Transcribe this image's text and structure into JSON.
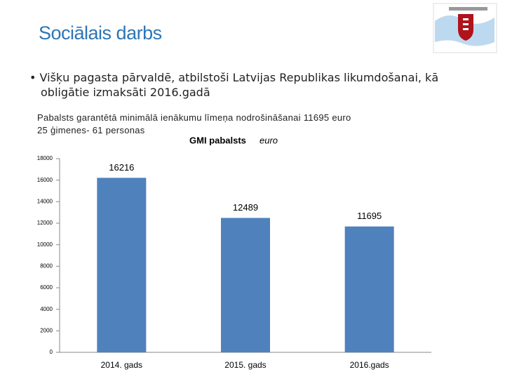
{
  "title": "Sociālais darbs",
  "bullet": "Višķu pagasta pārvaldē, atbilstoši Latvijas Republikas likumdošanai, kā obligātie izmaksāti 2016.gadā",
  "notes": [
    "Pabalsts garantētā minimālā ienākumu līmeņa nodrošināšanai 11695 euro",
    "25 ģimenes- 61 personas"
  ],
  "chart_data": {
    "type": "bar",
    "title": "GMI pabalsts",
    "title_unit": "euro",
    "categories": [
      "2014. gads",
      "2015. gads",
      "2016.gads"
    ],
    "values": [
      16216,
      12489,
      11695
    ],
    "color": "#4f81bd",
    "ylim": [
      0,
      18000
    ],
    "yticks": [
      0,
      2000,
      4000,
      6000,
      8000,
      10000,
      12000,
      14000,
      16000,
      18000
    ],
    "grid": false
  }
}
